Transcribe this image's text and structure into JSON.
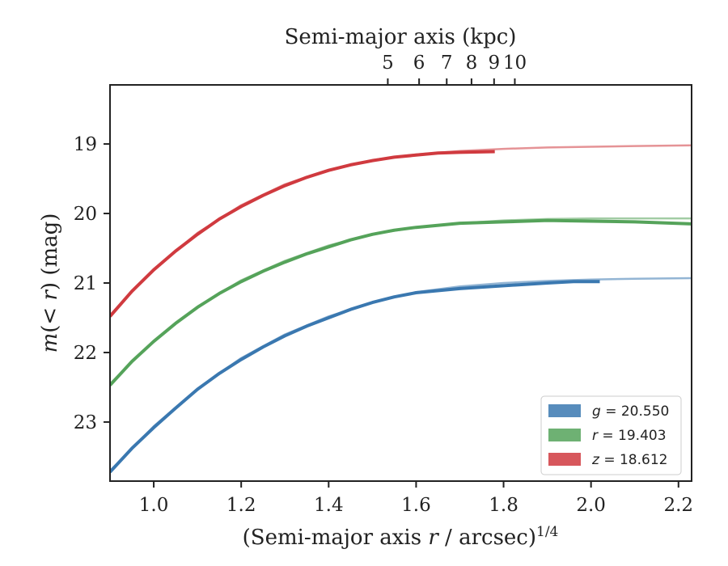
{
  "chart_data": {
    "type": "line",
    "title": "",
    "xlabel": "(Semi-major axis r / arcsec)1/4",
    "xlabel_main": "(Semi-major axis ",
    "xlabel_var": "r",
    "xlabel_rest": " / arcsec)",
    "xlabel_sup": "1/4",
    "ylabel": "m(< r) (mag)",
    "ylabel_var_m": "m",
    "ylabel_mid": "(< ",
    "ylabel_var_r": "r",
    "ylabel_end": ") (mag)",
    "top_xlabel": "Semi-major axis (kpc)",
    "xlim": [
      0.9,
      2.23
    ],
    "ylim": [
      23.85,
      18.15
    ],
    "y_inverted": true,
    "grid": false,
    "legend_position": "lower-right",
    "x_ticks": [
      1.0,
      1.2,
      1.4,
      1.6,
      1.8,
      2.0,
      2.2
    ],
    "x_tick_labels": [
      "1.0",
      "1.2",
      "1.4",
      "1.6",
      "1.8",
      "2.0",
      "2.2"
    ],
    "y_ticks": [
      19,
      20,
      21,
      22,
      23
    ],
    "y_tick_labels": [
      "19",
      "20",
      "21",
      "22",
      "23"
    ],
    "top_ticks_kpc": [
      5,
      6,
      7,
      8,
      9,
      10
    ],
    "top_tick_labels": [
      "5",
      "6",
      "7",
      "8",
      "9",
      "10"
    ],
    "kpc_per_arcsec": 0.9,
    "series": [
      {
        "name": "g = 20.550",
        "legend_var": "g",
        "legend_value": "= 20.550",
        "color": "#3a78b0",
        "data": [
          [
            0.9,
            23.72
          ],
          [
            0.95,
            23.38
          ],
          [
            1.0,
            23.08
          ],
          [
            1.05,
            22.8
          ],
          [
            1.1,
            22.53
          ],
          [
            1.15,
            22.3
          ],
          [
            1.2,
            22.1
          ],
          [
            1.25,
            21.92
          ],
          [
            1.3,
            21.76
          ],
          [
            1.35,
            21.62
          ],
          [
            1.4,
            21.5
          ],
          [
            1.45,
            21.38
          ],
          [
            1.5,
            21.28
          ],
          [
            1.55,
            21.2
          ],
          [
            1.6,
            21.14
          ],
          [
            1.7,
            21.08
          ],
          [
            1.8,
            21.04
          ],
          [
            1.9,
            21.0
          ],
          [
            1.96,
            20.98
          ],
          [
            2.02,
            20.98
          ]
        ],
        "model": [
          [
            0.9,
            23.7
          ],
          [
            1.0,
            23.06
          ],
          [
            1.1,
            22.52
          ],
          [
            1.2,
            22.08
          ],
          [
            1.3,
            21.74
          ],
          [
            1.4,
            21.48
          ],
          [
            1.5,
            21.28
          ],
          [
            1.6,
            21.13
          ],
          [
            1.7,
            21.05
          ],
          [
            1.8,
            21.0
          ],
          [
            1.9,
            20.97
          ],
          [
            2.0,
            20.95
          ],
          [
            2.1,
            20.94
          ],
          [
            2.23,
            20.93
          ]
        ]
      },
      {
        "name": "r = 19.403",
        "legend_var": "r",
        "legend_value": "= 19.403",
        "color": "#55a35a",
        "data": [
          [
            0.9,
            22.47
          ],
          [
            0.95,
            22.13
          ],
          [
            1.0,
            21.84
          ],
          [
            1.05,
            21.58
          ],
          [
            1.1,
            21.35
          ],
          [
            1.15,
            21.15
          ],
          [
            1.2,
            20.98
          ],
          [
            1.25,
            20.83
          ],
          [
            1.3,
            20.7
          ],
          [
            1.35,
            20.58
          ],
          [
            1.4,
            20.48
          ],
          [
            1.45,
            20.38
          ],
          [
            1.5,
            20.3
          ],
          [
            1.55,
            20.24
          ],
          [
            1.6,
            20.2
          ],
          [
            1.7,
            20.14
          ],
          [
            1.8,
            20.12
          ],
          [
            1.9,
            20.1
          ],
          [
            2.0,
            20.11
          ],
          [
            2.1,
            20.12
          ],
          [
            2.23,
            20.15
          ]
        ],
        "model": [
          [
            0.9,
            22.45
          ],
          [
            1.0,
            21.83
          ],
          [
            1.1,
            21.34
          ],
          [
            1.2,
            20.96
          ],
          [
            1.3,
            20.68
          ],
          [
            1.4,
            20.46
          ],
          [
            1.5,
            20.3
          ],
          [
            1.6,
            20.2
          ],
          [
            1.7,
            20.14
          ],
          [
            1.8,
            20.1
          ],
          [
            1.9,
            20.08
          ],
          [
            2.0,
            20.07
          ],
          [
            2.1,
            20.07
          ],
          [
            2.23,
            20.07
          ]
        ]
      },
      {
        "name": "z = 18.612",
        "legend_var": "z",
        "legend_value": "= 18.612",
        "color": "#d03a3f",
        "data": [
          [
            0.9,
            21.48
          ],
          [
            0.95,
            21.12
          ],
          [
            1.0,
            20.81
          ],
          [
            1.05,
            20.54
          ],
          [
            1.1,
            20.3
          ],
          [
            1.15,
            20.08
          ],
          [
            1.2,
            19.9
          ],
          [
            1.25,
            19.74
          ],
          [
            1.3,
            19.6
          ],
          [
            1.35,
            19.48
          ],
          [
            1.4,
            19.38
          ],
          [
            1.45,
            19.3
          ],
          [
            1.5,
            19.24
          ],
          [
            1.55,
            19.19
          ],
          [
            1.6,
            19.16
          ],
          [
            1.65,
            19.13
          ],
          [
            1.7,
            19.12
          ],
          [
            1.78,
            19.11
          ]
        ],
        "model": [
          [
            0.9,
            21.46
          ],
          [
            1.0,
            20.8
          ],
          [
            1.1,
            20.28
          ],
          [
            1.2,
            19.88
          ],
          [
            1.3,
            19.58
          ],
          [
            1.4,
            19.37
          ],
          [
            1.5,
            19.23
          ],
          [
            1.6,
            19.15
          ],
          [
            1.7,
            19.1
          ],
          [
            1.8,
            19.07
          ],
          [
            1.9,
            19.05
          ],
          [
            2.0,
            19.04
          ],
          [
            2.1,
            19.03
          ],
          [
            2.23,
            19.02
          ]
        ]
      }
    ]
  }
}
